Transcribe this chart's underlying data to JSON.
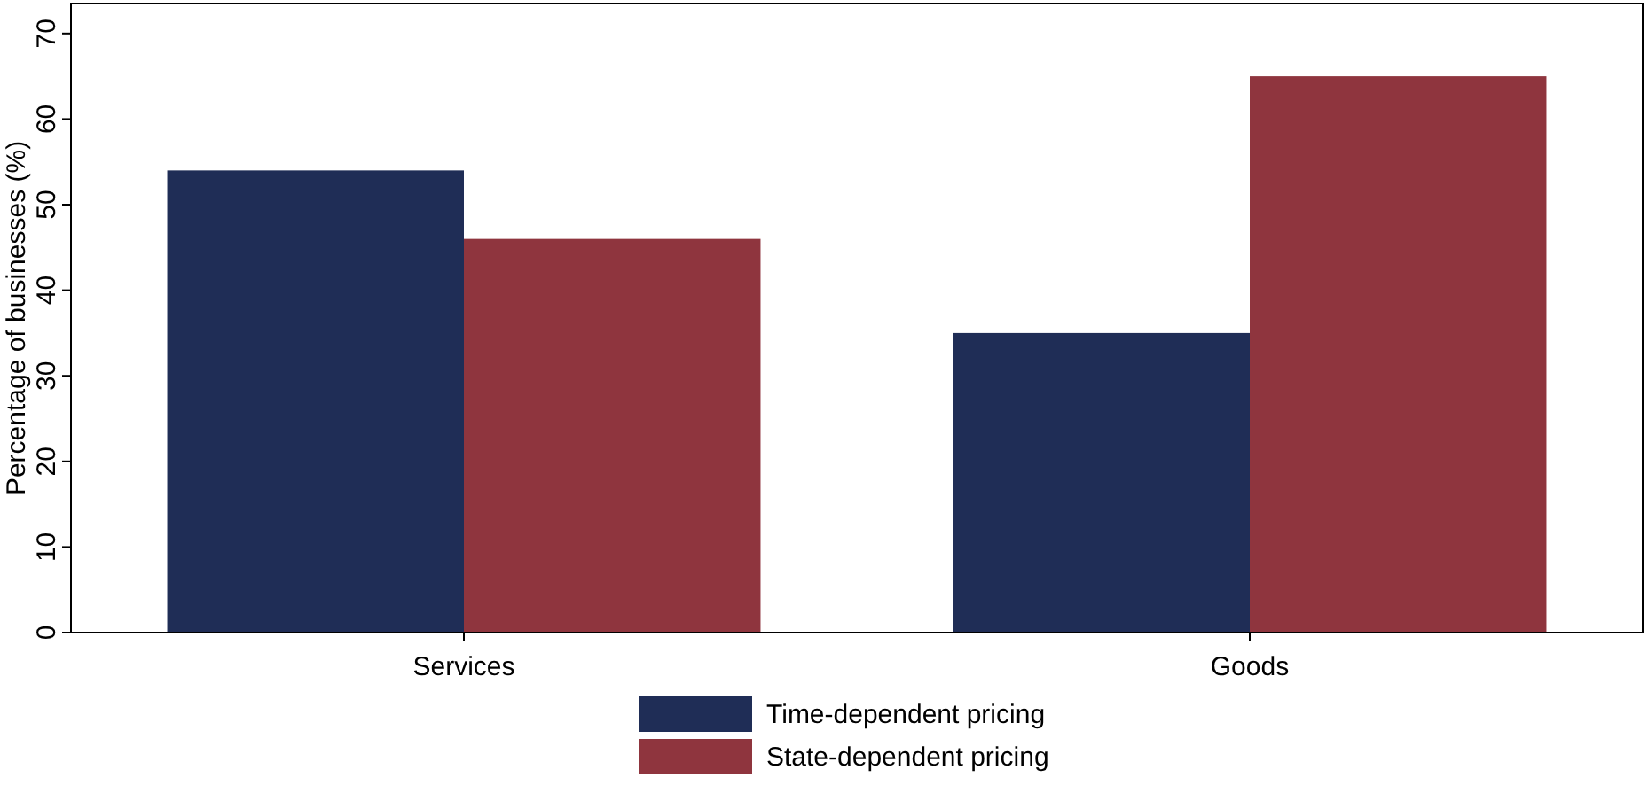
{
  "chart_data": {
    "type": "bar",
    "ylabel": "Percentage of businesses (%)",
    "categories": [
      "Services",
      "Goods"
    ],
    "series": [
      {
        "name": "Time-dependent pricing",
        "color": "#1f2d56",
        "values": [
          54,
          35
        ]
      },
      {
        "name": "State-dependent pricing",
        "color": "#8f353e",
        "values": [
          46,
          65
        ]
      }
    ],
    "ylim": [
      0,
      73.5
    ],
    "yticks": [
      0,
      10,
      20,
      30,
      40,
      50,
      60,
      70
    ],
    "grid": false,
    "legend": "bottom"
  }
}
